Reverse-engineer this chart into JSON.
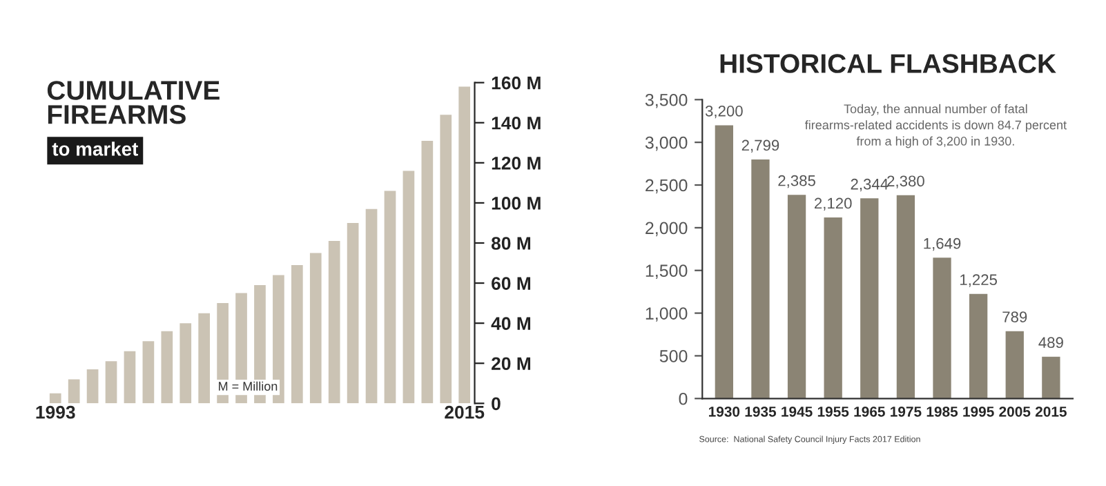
{
  "chart_data": [
    {
      "type": "bar",
      "title": "CUMULATIVE\nFIREARMS",
      "subtitle": "to market",
      "categories": [
        "1993",
        null,
        null,
        null,
        null,
        null,
        null,
        null,
        null,
        null,
        null,
        null,
        null,
        null,
        null,
        null,
        null,
        null,
        null,
        null,
        null,
        null,
        "2015"
      ],
      "values": [
        5,
        12,
        17,
        21,
        26,
        31,
        36,
        40,
        45,
        50,
        55,
        59,
        64,
        69,
        75,
        81,
        90,
        97,
        106,
        116,
        131,
        144,
        158
      ],
      "color": "#cbc3b4",
      "ylim": [
        0,
        160
      ],
      "yticks": [
        0,
        {
          "value": 20,
          "label": "20 M"
        },
        {
          "value": 40,
          "label": "40 M"
        },
        {
          "value": 60,
          "label": "60 M"
        },
        {
          "value": 80,
          "label": "80 M"
        },
        {
          "value": 100,
          "label": "100 M"
        },
        {
          "value": 120,
          "label": "120 M"
        },
        {
          "value": 140,
          "label": "140 M"
        },
        {
          "value": 160,
          "label": "160 M"
        }
      ],
      "annotations": [
        "M = Million"
      ],
      "grid": false,
      "legend": false
    },
    {
      "type": "bar",
      "title": "HISTORICAL FLASHBACK",
      "categories": [
        "1930",
        "1935",
        "1945",
        "1955",
        "1965",
        "1975",
        "1985",
        "1995",
        "2005",
        "2015"
      ],
      "values": [
        3200,
        2799,
        2385,
        2120,
        2344,
        2380,
        1649,
        1225,
        789,
        489
      ],
      "value_labels": [
        "3,200",
        "2,799",
        "2,385",
        "2,120",
        "2,344",
        "2,380",
        "1,649",
        "1,225",
        "789",
        "489"
      ],
      "color": "#8b8474",
      "ylim": [
        0,
        3500
      ],
      "yticks": [
        0,
        500,
        {
          "value": 1000,
          "label": "1,000"
        },
        {
          "value": 1500,
          "label": "1,500"
        },
        {
          "value": 2000,
          "label": "2,000"
        },
        {
          "value": 2500,
          "label": "2,500"
        },
        {
          "value": 3000,
          "label": "3,000"
        },
        {
          "value": 3500,
          "label": "3,500"
        }
      ],
      "annotations": [
        "Today, the annual number of fatal\nfirearms-related accidents is down 84.7 percent\nfrom a high of 3,200 in 1930.",
        "Source:  National Safety Council Injury Facts 2017 Edition"
      ],
      "grid": false,
      "legend": false
    }
  ]
}
